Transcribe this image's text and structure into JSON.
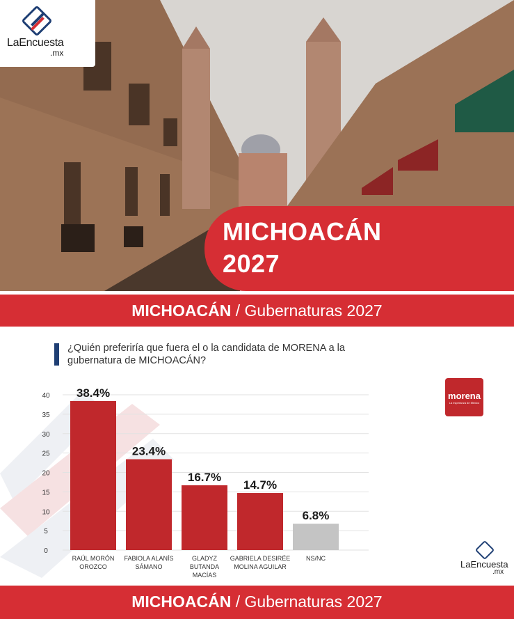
{
  "brand": {
    "name": "LaEncuesta",
    "tld": ".mx"
  },
  "hero": {
    "title_line1": "MICHOACÁN",
    "title_line2": "2027"
  },
  "band_top": {
    "state": "MICHOACÁN",
    "section": " / Gubernaturas 2027"
  },
  "band_bottom": {
    "state": "MICHOACÁN",
    "section": " / Gubernaturas 2027"
  },
  "question": "¿Quién preferiría que fuera el o la candidata de MORENA a la gubernatura de MICHOACÁN?",
  "party_logo": {
    "name": "morena",
    "tagline": "La esperanza de México"
  },
  "colors": {
    "accent_red": "#d62e34",
    "bar_red": "#c0282c",
    "bar_gray": "#c4c4c4",
    "navy": "#1f3f74"
  },
  "chart_data": {
    "type": "bar",
    "categories": [
      [
        "RAÚL MORÓN",
        "OROZCO"
      ],
      [
        "FABIOLA ALANÍS",
        "SÁMANO"
      ],
      [
        "GLADYZ",
        "BUTANDA",
        "MACÍAS"
      ],
      [
        "GABRIELA DESIRÉE",
        "MOLINA AGUILAR"
      ],
      [
        "NS/NC"
      ]
    ],
    "values": [
      38.4,
      23.4,
      16.7,
      14.7,
      6.8
    ],
    "value_labels": [
      "38.4%",
      "23.4%",
      "16.7%",
      "14.7%",
      "6.8%"
    ],
    "bar_colors": [
      "#c0282c",
      "#c0282c",
      "#c0282c",
      "#c0282c",
      "#c4c4c4"
    ],
    "yticks": [
      0,
      5,
      10,
      15,
      20,
      25,
      30,
      35,
      40
    ],
    "ylim": [
      0,
      40
    ],
    "grid": true
  }
}
